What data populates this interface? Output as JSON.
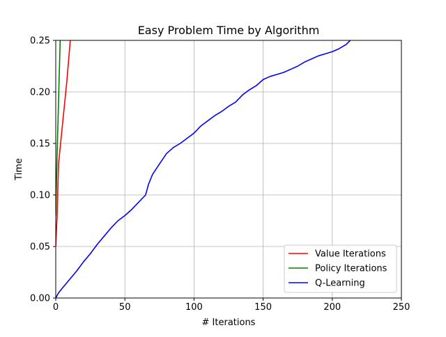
{
  "chart_data": {
    "type": "line",
    "title": "Easy Problem Time by Algorithm",
    "xlabel": "# Iterations",
    "ylabel": "Time",
    "xlim": [
      0,
      250
    ],
    "ylim": [
      0,
      0.25
    ],
    "xticks": [
      0,
      50,
      100,
      150,
      200,
      250
    ],
    "xtick_labels": [
      "0",
      "50",
      "100",
      "150",
      "200",
      "250"
    ],
    "yticks": [
      0.0,
      0.05,
      0.1,
      0.15,
      0.2,
      0.25
    ],
    "ytick_labels": [
      "0.00",
      "0.05",
      "0.10",
      "0.15",
      "0.20",
      "0.25"
    ],
    "grid": true,
    "legend_position": "lower-right",
    "series": [
      {
        "name": "Value Iterations",
        "color": "#ff0000",
        "x": [
          0,
          1,
          2,
          5,
          8,
          10.5
        ],
        "y": [
          0.05,
          0.08,
          0.13,
          0.17,
          0.21,
          0.25
        ]
      },
      {
        "name": "Policy Iterations",
        "color": "#008000",
        "x": [
          0,
          0.8,
          1.6,
          2.4,
          3.2
        ],
        "y": [
          0.08,
          0.13,
          0.17,
          0.21,
          0.25
        ]
      },
      {
        "name": "Q-Learning",
        "color": "#0000ff",
        "x": [
          0,
          2,
          5,
          10,
          15,
          20,
          25,
          30,
          35,
          40,
          45,
          50,
          55,
          60,
          65,
          67,
          70,
          75,
          80,
          85,
          90,
          95,
          100,
          105,
          110,
          115,
          120,
          125,
          130,
          135,
          140,
          145,
          150,
          155,
          160,
          165,
          170,
          175,
          180,
          185,
          190,
          195,
          200,
          205,
          210,
          213
        ],
        "y": [
          0.0,
          0.005,
          0.01,
          0.018,
          0.026,
          0.035,
          0.043,
          0.052,
          0.06,
          0.068,
          0.075,
          0.08,
          0.086,
          0.093,
          0.1,
          0.11,
          0.12,
          0.13,
          0.14,
          0.146,
          0.15,
          0.155,
          0.16,
          0.167,
          0.172,
          0.177,
          0.181,
          0.186,
          0.19,
          0.197,
          0.202,
          0.206,
          0.212,
          0.215,
          0.217,
          0.219,
          0.222,
          0.225,
          0.229,
          0.232,
          0.235,
          0.237,
          0.239,
          0.242,
          0.246,
          0.25
        ]
      }
    ]
  }
}
